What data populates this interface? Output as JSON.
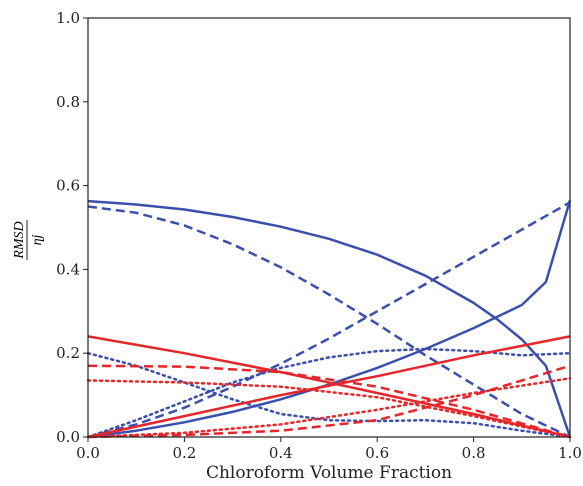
{
  "chart_data": {
    "type": "line",
    "title": "",
    "xlabel": "Chloroform Volume Fraction",
    "ylabel": {
      "numerator": "RMSD",
      "denominator": "ηj"
    },
    "xlim": [
      0.0,
      1.0
    ],
    "ylim": [
      0.0,
      1.0
    ],
    "xticks": [
      "0.0",
      "0.2",
      "0.4",
      "0.6",
      "0.8",
      "1.0"
    ],
    "yticks": [
      "0.0",
      "0.2",
      "0.4",
      "0.6",
      "0.8",
      "1.0"
    ],
    "grid": false,
    "legend": "none",
    "colors": {
      "blue": "#3b4fad",
      "red": "#e5262a"
    },
    "series": [
      {
        "color": "blue",
        "style": "solid",
        "x": [
          0,
          0.1,
          0.2,
          0.3,
          0.4,
          0.5,
          0.6,
          0.7,
          0.8,
          0.85,
          0.9,
          0.95,
          1.0
        ],
        "y": [
          0.563,
          0.555,
          0.543,
          0.525,
          0.502,
          0.473,
          0.435,
          0.385,
          0.32,
          0.28,
          0.233,
          0.17,
          0.0
        ]
      },
      {
        "color": "blue",
        "style": "solid",
        "x": [
          0,
          0.1,
          0.2,
          0.3,
          0.4,
          0.5,
          0.6,
          0.7,
          0.8,
          0.9,
          0.95,
          1.0
        ],
        "y": [
          0.0,
          0.015,
          0.035,
          0.06,
          0.09,
          0.125,
          0.165,
          0.21,
          0.26,
          0.315,
          0.37,
          0.565
        ]
      },
      {
        "color": "blue",
        "style": "dashed",
        "x": [
          0,
          0.1,
          0.2,
          0.3,
          0.4,
          0.5,
          0.6,
          0.7,
          0.8,
          0.9,
          1.0
        ],
        "y": [
          0.55,
          0.535,
          0.505,
          0.46,
          0.405,
          0.34,
          0.27,
          0.195,
          0.125,
          0.055,
          0.0
        ]
      },
      {
        "color": "blue",
        "style": "dashed",
        "x": [
          0,
          0.1,
          0.2,
          0.3,
          0.4,
          0.5,
          0.6,
          0.7,
          0.8,
          0.9,
          1.0
        ],
        "y": [
          0.0,
          0.03,
          0.07,
          0.12,
          0.175,
          0.235,
          0.3,
          0.365,
          0.43,
          0.495,
          0.56
        ]
      },
      {
        "color": "blue",
        "style": "dotted",
        "x": [
          0,
          0.1,
          0.2,
          0.3,
          0.4,
          0.5,
          0.6,
          0.7,
          0.8,
          0.9,
          1.0
        ],
        "y": [
          0.2,
          0.17,
          0.13,
          0.09,
          0.055,
          0.04,
          0.038,
          0.04,
          0.033,
          0.015,
          0.0
        ]
      },
      {
        "color": "blue",
        "style": "dotted",
        "x": [
          0,
          0.1,
          0.2,
          0.3,
          0.4,
          0.5,
          0.6,
          0.7,
          0.8,
          0.9,
          1.0
        ],
        "y": [
          0.0,
          0.04,
          0.085,
          0.13,
          0.165,
          0.19,
          0.205,
          0.21,
          0.205,
          0.195,
          0.2
        ]
      },
      {
        "color": "red",
        "style": "solid",
        "x": [
          0,
          0.2,
          0.4,
          0.6,
          0.8,
          1.0
        ],
        "y": [
          0.24,
          0.2,
          0.155,
          0.105,
          0.055,
          0.0
        ]
      },
      {
        "color": "red",
        "style": "solid",
        "x": [
          0,
          0.2,
          0.4,
          0.6,
          0.8,
          1.0
        ],
        "y": [
          0.0,
          0.05,
          0.1,
          0.145,
          0.195,
          0.24
        ]
      },
      {
        "color": "red",
        "style": "dashed",
        "x": [
          0,
          0.2,
          0.4,
          0.6,
          0.8,
          1.0
        ],
        "y": [
          0.17,
          0.168,
          0.155,
          0.12,
          0.065,
          0.0
        ]
      },
      {
        "color": "red",
        "style": "dashed",
        "x": [
          0,
          0.2,
          0.4,
          0.6,
          0.8,
          1.0
        ],
        "y": [
          0.0,
          0.005,
          0.015,
          0.04,
          0.1,
          0.17
        ]
      },
      {
        "color": "red",
        "style": "dotted",
        "x": [
          0,
          0.2,
          0.4,
          0.6,
          0.8,
          1.0
        ],
        "y": [
          0.135,
          0.13,
          0.12,
          0.095,
          0.05,
          0.0
        ]
      },
      {
        "color": "red",
        "style": "dotted",
        "x": [
          0,
          0.2,
          0.4,
          0.6,
          0.8,
          1.0
        ],
        "y": [
          0.0,
          0.01,
          0.03,
          0.065,
          0.105,
          0.14
        ]
      }
    ]
  }
}
